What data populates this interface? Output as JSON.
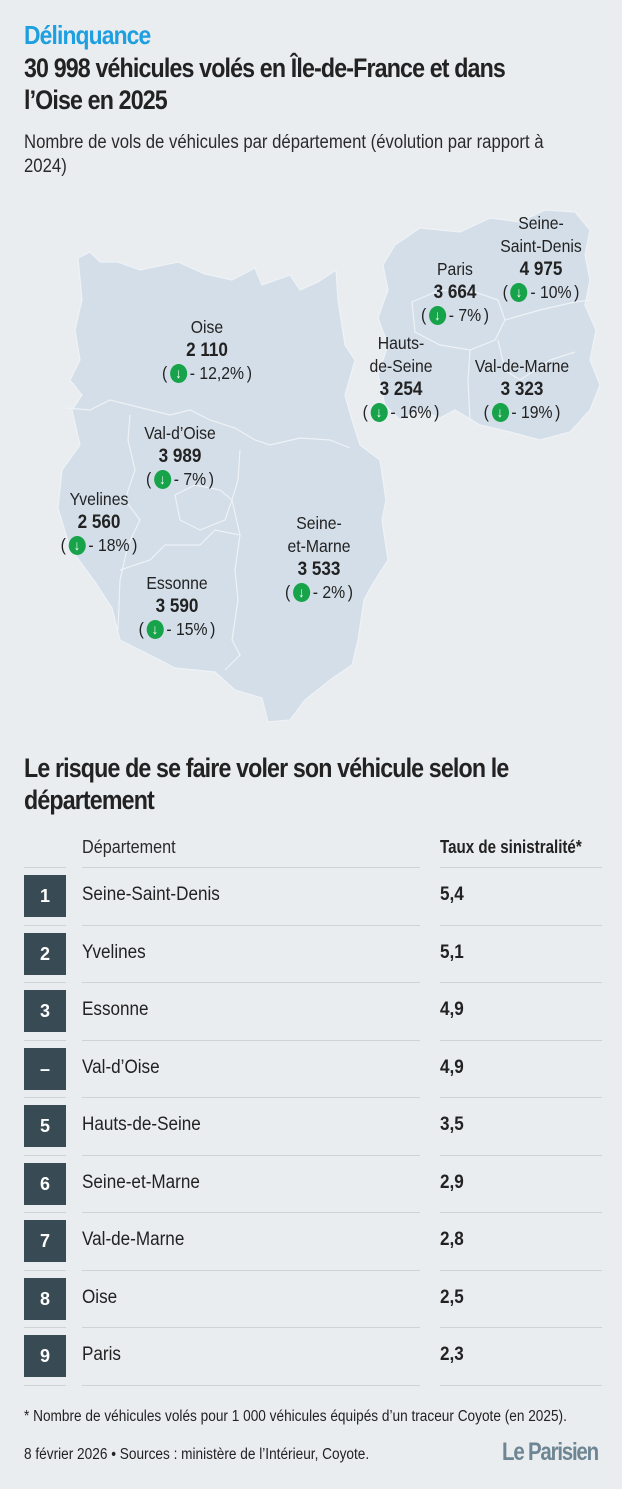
{
  "header": {
    "kicker": "Délinquance",
    "title": "30 998 véhicules volés en Île-de-France et dans l’Oise en 2025",
    "subtitle": "Nombre de vols de véhicules par département (évolution par rapport à 2024)"
  },
  "colors": {
    "kicker": "#1e9fe0",
    "map_fill": "#d3dee8",
    "map_border": "#f2f5f8",
    "decrease_icon": "#17a34a",
    "rank_badge": "#384a54",
    "background": "#eaedf0"
  },
  "map": {
    "icon": "arrow-down-circle-icon",
    "departments": [
      {
        "name": "Oise",
        "name_lines": [
          "Oise"
        ],
        "value": "2 110",
        "change": "- 12,2%"
      },
      {
        "name": "Val-d’Oise",
        "name_lines": [
          "Val-d’Oise"
        ],
        "value": "3 989",
        "change": "- 7%"
      },
      {
        "name": "Yvelines",
        "name_lines": [
          "Yvelines"
        ],
        "value": "2 560",
        "change": "- 18%"
      },
      {
        "name": "Essonne",
        "name_lines": [
          "Essonne"
        ],
        "value": "3 590",
        "change": "- 15%"
      },
      {
        "name": "Seine-et-Marne",
        "name_lines": [
          "Seine-",
          "et-Marne"
        ],
        "value": "3 533",
        "change": "- 2%"
      },
      {
        "name": "Paris",
        "name_lines": [
          "Paris"
        ],
        "value": "3 664",
        "change": "- 7%"
      },
      {
        "name": "Seine-Saint-Denis",
        "name_lines": [
          "Seine-",
          "Saint-Denis"
        ],
        "value": "4 975",
        "change": "- 10%"
      },
      {
        "name": "Hauts-de-Seine",
        "name_lines": [
          "Hauts-",
          "de-Seine"
        ],
        "value": "3 254",
        "change": "- 16%"
      },
      {
        "name": "Val-de-Marne",
        "name_lines": [
          "Val-de-Marne"
        ],
        "value": "3 323",
        "change": "- 19%"
      }
    ]
  },
  "chart_data": {
    "type": "table",
    "title": "Le risque de se faire voler son véhicule selon le département",
    "columns": [
      "",
      "Département",
      "Taux de sinistralité*"
    ],
    "rows": [
      {
        "rank": "1",
        "department": "Seine-Saint-Denis",
        "rate": "5,4"
      },
      {
        "rank": "2",
        "department": "Yvelines",
        "rate": "5,1"
      },
      {
        "rank": "3",
        "department": "Essonne",
        "rate": "4,9"
      },
      {
        "rank": "–",
        "department": "Val-d’Oise",
        "rate": "4,9"
      },
      {
        "rank": "5",
        "department": "Hauts-de-Seine",
        "rate": "3,5"
      },
      {
        "rank": "6",
        "department": "Seine-et-Marne",
        "rate": "2,9"
      },
      {
        "rank": "7",
        "department": "Val-de-Marne",
        "rate": "2,8"
      },
      {
        "rank": "8",
        "department": "Oise",
        "rate": "2,5"
      },
      {
        "rank": "9",
        "department": "Paris",
        "rate": "2,3"
      }
    ],
    "map_values": {
      "series": [
        {
          "name": "Vols de véhicules 2025",
          "values": {
            "Oise": 2110,
            "Val-d’Oise": 3989,
            "Yvelines": 2560,
            "Essonne": 3590,
            "Seine-et-Marne": 3533,
            "Paris": 3664,
            "Seine-Saint-Denis": 4975,
            "Hauts-de-Seine": 3254,
            "Val-de-Marne": 3323
          }
        },
        {
          "name": "Évolution vs 2024 (%)",
          "values": {
            "Oise": -12.2,
            "Val-d’Oise": -7,
            "Yvelines": -18,
            "Essonne": -15,
            "Seine-et-Marne": -2,
            "Paris": -7,
            "Seine-Saint-Denis": -10,
            "Hauts-de-Seine": -16,
            "Val-de-Marne": -19
          }
        }
      ]
    }
  },
  "table": {
    "title": "Le risque de se faire voler son véhicule selon le département",
    "col_department": "Département",
    "col_rate": "Taux de sinistralité*"
  },
  "footer": {
    "note": "* Nombre de véhicules volés pour 1 000 véhicules équipés d’un traceur Coyote (en 2025).",
    "source": "8 février 2026 • Sources : ministère de l’Intérieur, Coyote.",
    "logo": "Le Parisien"
  }
}
